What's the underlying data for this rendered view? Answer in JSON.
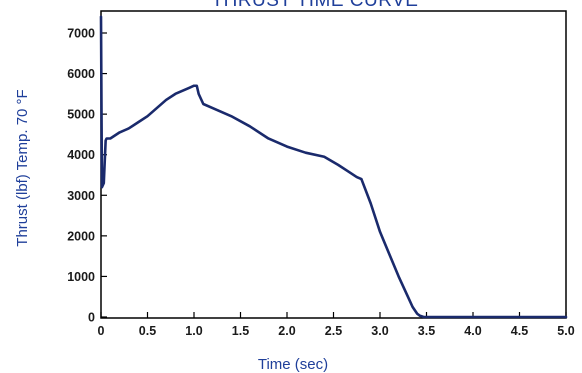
{
  "chart_data": {
    "type": "line",
    "title": "THRUST TIME CURVE",
    "xlabel": "Time (sec)",
    "ylabel": "Thrust (lbf) Temp. 70 °F",
    "xlim": [
      0,
      5.0
    ],
    "ylim": [
      0,
      7500
    ],
    "x_ticks": [
      "0",
      "0.5",
      "1.0",
      "1.5",
      "2.0",
      "2.5",
      "3.0",
      "3.5",
      "4.0",
      "4.5",
      "5.0"
    ],
    "x_tick_values": [
      0,
      0.5,
      1.0,
      1.5,
      2.0,
      2.5,
      3.0,
      3.5,
      4.0,
      4.5,
      5.0
    ],
    "y_ticks": [
      "0",
      "1000",
      "2000",
      "3000",
      "4000",
      "5000",
      "6000",
      "7000"
    ],
    "y_tick_values": [
      0,
      1000,
      2000,
      3000,
      4000,
      5000,
      6000,
      7000
    ],
    "grid": false,
    "colors": {
      "line": "#1a2a6c",
      "axis": "#000000",
      "labels": "#1f3f9a"
    },
    "series": [
      {
        "x": [
          0.0,
          0.01,
          0.03,
          0.05,
          0.06,
          0.08,
          0.1,
          0.2,
          0.3,
          0.4,
          0.5,
          0.6,
          0.7,
          0.8,
          0.9,
          0.95,
          1.0,
          1.03,
          1.05,
          1.1,
          1.2,
          1.4,
          1.6,
          1.8,
          2.0,
          2.2,
          2.4,
          2.55,
          2.65,
          2.75,
          2.8,
          2.9,
          3.0,
          3.1,
          3.2,
          3.3,
          3.35,
          3.4,
          3.43,
          3.47,
          3.5,
          4.0,
          4.5,
          5.0
        ],
        "y": [
          7400,
          3200,
          3300,
          4350,
          4400,
          4400,
          4400,
          4550,
          4650,
          4800,
          4950,
          5150,
          5350,
          5500,
          5600,
          5650,
          5700,
          5700,
          5500,
          5250,
          5150,
          4950,
          4700,
          4400,
          4200,
          4050,
          3950,
          3750,
          3600,
          3450,
          3400,
          2800,
          2100,
          1550,
          1000,
          500,
          250,
          80,
          30,
          0,
          0,
          0,
          0,
          0
        ]
      }
    ]
  }
}
